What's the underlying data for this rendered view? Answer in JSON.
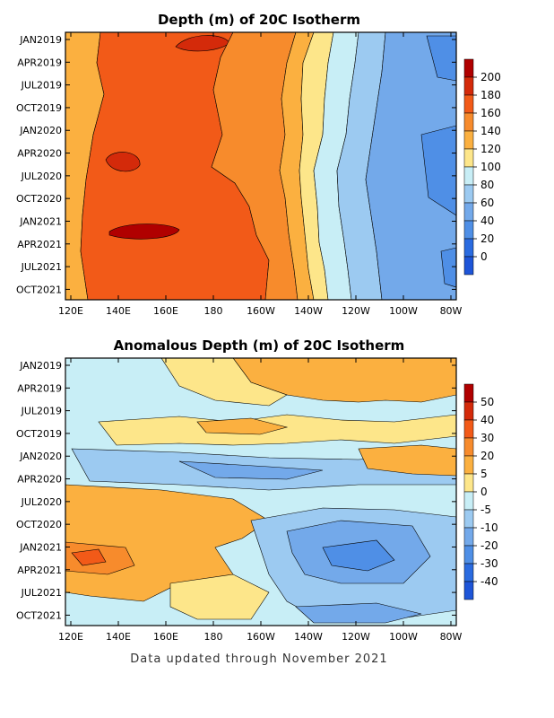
{
  "footer": "Data updated through November 2021",
  "chart_data": [
    {
      "type": "heatmap",
      "title": "Depth (m) of 20C Isotherm",
      "x_ticks": [
        "120E",
        "140E",
        "160E",
        "180",
        "160W",
        "140W",
        "120W",
        "100W",
        "80W"
      ],
      "y_ticks": [
        "JAN2019",
        "APR2019",
        "JUL2019",
        "OCT2019",
        "JAN2020",
        "APR2020",
        "JUL2020",
        "OCT2020",
        "JAN2021",
        "APR2021",
        "JUL2021",
        "OCT2021"
      ],
      "colorbar": {
        "labels": [
          "200",
          "180",
          "160",
          "140",
          "120",
          "100",
          "80",
          "60",
          "40",
          "20",
          "0"
        ],
        "colors": [
          "#b00000",
          "#d42a0a",
          "#f25a18",
          "#f78b2c",
          "#fbb040",
          "#fde68a",
          "#c8eef6",
          "#9ccaf1",
          "#73a9ea",
          "#4f8fe6",
          "#2a6be0",
          "#1e55d8"
        ]
      },
      "x_range": [
        "120E",
        "80W"
      ],
      "y_range": [
        "JAN2019",
        "NOV2021"
      ]
    },
    {
      "type": "heatmap",
      "title": "Anomalous Depth (m) of 20C Isotherm",
      "x_ticks": [
        "120E",
        "140E",
        "160E",
        "180",
        "160W",
        "140W",
        "120W",
        "100W",
        "80W"
      ],
      "y_ticks": [
        "JAN2019",
        "APR2019",
        "JUL2019",
        "OCT2019",
        "JAN2020",
        "APR2020",
        "JUL2020",
        "OCT2020",
        "JAN2021",
        "APR2021",
        "JUL2021",
        "OCT2021"
      ],
      "colorbar": {
        "labels": [
          "50",
          "40",
          "30",
          "20",
          "5",
          "0",
          "-5",
          "-10",
          "-20",
          "-30",
          "-40"
        ],
        "colors": [
          "#b00000",
          "#d42a0a",
          "#f25a18",
          "#f78b2c",
          "#fbb040",
          "#fde68a",
          "#c8eef6",
          "#9ccaf1",
          "#73a9ea",
          "#4f8fe6",
          "#2a6be0",
          "#1e55d8"
        ]
      },
      "x_range": [
        "120E",
        "80W"
      ],
      "y_range": [
        "JAN2019",
        "NOV2021"
      ]
    }
  ]
}
